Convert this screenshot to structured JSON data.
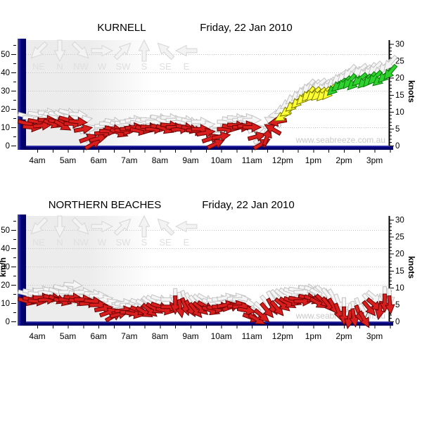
{
  "page": {
    "background": "#ffffff"
  },
  "watermark_text": "www.seabreeze.com.au",
  "axes": {
    "left_label": "km/h",
    "right_label": "knots",
    "left_tick_labels": [
      0,
      10,
      20,
      30,
      40,
      50
    ],
    "right_tick_labels": [
      0,
      5,
      10,
      15,
      20,
      25,
      30
    ],
    "x_tick_labels": [
      "4am",
      "5am",
      "6am",
      "7am",
      "8am",
      "9am",
      "10am",
      "11am",
      "12pm",
      "1pm",
      "2pm",
      "3pm"
    ]
  },
  "direction_legend": [
    "NE",
    "N",
    "NW",
    "W",
    "SW",
    "S",
    "SE",
    "E"
  ],
  "colors": {
    "axis_bar": "#00007e",
    "axis_bar_highlight": "#4949b6",
    "arrow_calm": "#d91e1e",
    "arrow_calm_stroke": "#6b0000",
    "arrow_moderate": "#ffff33",
    "arrow_moderate_stroke": "#7a7a00",
    "arrow_fresh": "#2fd12f",
    "arrow_fresh_stroke": "#0a7a0a",
    "gust_fill": "#f5f5f5",
    "gust_stroke": "#c2c2c2",
    "grid": "#c4c4c4",
    "plot_shade": "#ececec",
    "legend_gray": "#dfdfdf",
    "watermark": "#c9c9c9",
    "text": "#000000"
  },
  "speed_color_thresholds_kmh": {
    "yellow_from": 15,
    "green_from": 30
  },
  "chart_data": [
    {
      "type": "scatter",
      "station": "KURNELL",
      "date": "Friday, 22 Jan 2010",
      "speed_unit": "km/h",
      "alt_unit": "knots",
      "ylim_kmh": [
        0,
        56
      ],
      "xlim_hours": [
        3.6,
        15.8
      ],
      "show_left_axis_label": false,
      "point_format": [
        "hour_24",
        "wind_kmh",
        "gust_kmh",
        "dir_from_deg"
      ],
      "points": [
        [
          3.67,
          12,
          16,
          285
        ],
        [
          3.83,
          10,
          15,
          275
        ],
        [
          4.0,
          13,
          17,
          280
        ],
        [
          4.17,
          11,
          15,
          265
        ],
        [
          4.33,
          14,
          18,
          270
        ],
        [
          4.5,
          12,
          16,
          290
        ],
        [
          4.67,
          13,
          17,
          280
        ],
        [
          4.83,
          11,
          16,
          300
        ],
        [
          5.0,
          14,
          18,
          285
        ],
        [
          5.17,
          12,
          16,
          270
        ],
        [
          5.33,
          13,
          17,
          275
        ],
        [
          5.5,
          9,
          14,
          260
        ],
        [
          5.67,
          4,
          9,
          250
        ],
        [
          5.83,
          1,
          5,
          240
        ],
        [
          6.0,
          4,
          8,
          255
        ],
        [
          6.17,
          7,
          11,
          265
        ],
        [
          6.33,
          8,
          12,
          270
        ],
        [
          6.5,
          9,
          13,
          280
        ],
        [
          6.67,
          7,
          11,
          290
        ],
        [
          6.83,
          8,
          12,
          275
        ],
        [
          7.0,
          9,
          13,
          270
        ],
        [
          7.17,
          10,
          14,
          265
        ],
        [
          7.33,
          8,
          12,
          280
        ],
        [
          7.5,
          9,
          13,
          285
        ],
        [
          7.67,
          10,
          14,
          275
        ],
        [
          7.83,
          9,
          13,
          270
        ],
        [
          8.0,
          10,
          15,
          280
        ],
        [
          8.17,
          9,
          13,
          290
        ],
        [
          8.33,
          11,
          15,
          275
        ],
        [
          8.5,
          10,
          14,
          270
        ],
        [
          8.67,
          9,
          13,
          265
        ],
        [
          8.83,
          10,
          14,
          280
        ],
        [
          9.0,
          9,
          13,
          285
        ],
        [
          9.17,
          8,
          12,
          275
        ],
        [
          9.33,
          9,
          13,
          270
        ],
        [
          9.5,
          7,
          11,
          260
        ],
        [
          9.67,
          4,
          8,
          250
        ],
        [
          9.83,
          1,
          5,
          245
        ],
        [
          10.0,
          5,
          9,
          260
        ],
        [
          10.17,
          9,
          13,
          270
        ],
        [
          10.33,
          10,
          14,
          280
        ],
        [
          10.5,
          11,
          15,
          275
        ],
        [
          10.67,
          10,
          14,
          270
        ],
        [
          10.83,
          11,
          15,
          265
        ],
        [
          11.0,
          10,
          14,
          270
        ],
        [
          11.17,
          5,
          9,
          255
        ],
        [
          11.33,
          1,
          4,
          240
        ],
        [
          11.5,
          5,
          9,
          200
        ],
        [
          11.67,
          9,
          13,
          120
        ],
        [
          11.83,
          13,
          17,
          80
        ],
        [
          12.0,
          16,
          20,
          60
        ],
        [
          12.17,
          19,
          23,
          55
        ],
        [
          12.33,
          22,
          26,
          50
        ],
        [
          12.5,
          24,
          28,
          45
        ],
        [
          12.67,
          26,
          30,
          45
        ],
        [
          12.83,
          28,
          32,
          40
        ],
        [
          13.0,
          28,
          32,
          45
        ],
        [
          13.17,
          28,
          33,
          50
        ],
        [
          13.33,
          28,
          32,
          45
        ],
        [
          13.5,
          29,
          33,
          40
        ],
        [
          13.67,
          31,
          35,
          45
        ],
        [
          13.83,
          33,
          37,
          50
        ],
        [
          14.0,
          34,
          38,
          45
        ],
        [
          14.17,
          35,
          40,
          40
        ],
        [
          14.33,
          34,
          39,
          45
        ],
        [
          14.5,
          36,
          41,
          50
        ],
        [
          14.67,
          35,
          40,
          45
        ],
        [
          14.83,
          36,
          41,
          40
        ],
        [
          15.0,
          37,
          42,
          45
        ],
        [
          15.17,
          36,
          41,
          50
        ],
        [
          15.33,
          38,
          43,
          45
        ],
        [
          15.5,
          40,
          45,
          40
        ]
      ]
    },
    {
      "type": "scatter",
      "station": "NORTHERN BEACHES",
      "date": "Friday, 22 Jan 2010",
      "speed_unit": "km/h",
      "alt_unit": "knots",
      "ylim_kmh": [
        0,
        56
      ],
      "xlim_hours": [
        3.6,
        15.8
      ],
      "show_left_axis_label": true,
      "point_format": [
        "hour_24",
        "wind_kmh",
        "gust_kmh",
        "dir_from_deg"
      ],
      "points": [
        [
          3.67,
          11,
          15,
          285
        ],
        [
          3.83,
          12,
          16,
          280
        ],
        [
          4.0,
          11,
          15,
          275
        ],
        [
          4.17,
          13,
          17,
          270
        ],
        [
          4.33,
          12,
          16,
          265
        ],
        [
          4.5,
          13,
          17,
          280
        ],
        [
          4.67,
          12,
          16,
          290
        ],
        [
          4.83,
          11,
          18,
          285
        ],
        [
          5.0,
          12,
          16,
          270
        ],
        [
          5.17,
          13,
          20,
          275
        ],
        [
          5.33,
          11,
          15,
          280
        ],
        [
          5.5,
          12,
          16,
          270
        ],
        [
          5.67,
          10,
          14,
          265
        ],
        [
          5.83,
          11,
          15,
          275
        ],
        [
          6.0,
          9,
          14,
          270
        ],
        [
          6.17,
          7,
          12,
          260
        ],
        [
          6.33,
          5,
          10,
          250
        ],
        [
          6.5,
          3,
          8,
          240
        ],
        [
          6.67,
          4,
          9,
          255
        ],
        [
          6.83,
          6,
          10,
          265
        ],
        [
          7.0,
          5,
          9,
          270
        ],
        [
          7.17,
          4,
          8,
          280
        ],
        [
          7.33,
          6,
          10,
          290
        ],
        [
          7.5,
          5,
          9,
          300
        ],
        [
          7.67,
          6,
          10,
          310
        ],
        [
          7.83,
          7,
          11,
          300
        ],
        [
          8.0,
          8,
          12,
          290
        ],
        [
          8.17,
          6,
          10,
          280
        ],
        [
          8.33,
          8,
          12,
          270
        ],
        [
          8.5,
          9,
          13,
          0
        ],
        [
          8.67,
          7,
          11,
          350
        ],
        [
          8.83,
          8,
          12,
          340
        ],
        [
          9.0,
          7,
          11,
          330
        ],
        [
          9.17,
          6,
          10,
          320
        ],
        [
          9.33,
          7,
          11,
          310
        ],
        [
          9.5,
          8,
          12,
          300
        ],
        [
          9.67,
          6,
          10,
          290
        ],
        [
          9.83,
          7,
          11,
          280
        ],
        [
          10.0,
          8,
          12,
          270
        ],
        [
          10.17,
          9,
          13,
          260
        ],
        [
          10.33,
          8,
          12,
          250
        ],
        [
          10.5,
          9,
          13,
          260
        ],
        [
          10.67,
          8,
          12,
          270
        ],
        [
          10.83,
          6,
          10,
          280
        ],
        [
          11.0,
          2,
          6,
          290
        ],
        [
          11.17,
          1,
          5,
          300
        ],
        [
          11.33,
          3,
          7,
          310
        ],
        [
          11.5,
          6,
          10,
          320
        ],
        [
          11.67,
          8,
          12,
          330
        ],
        [
          11.83,
          7,
          13,
          320
        ],
        [
          12.0,
          9,
          14,
          310
        ],
        [
          12.17,
          10,
          15,
          300
        ],
        [
          12.33,
          11,
          16,
          290
        ],
        [
          12.5,
          12,
          17,
          280
        ],
        [
          12.67,
          11,
          16,
          270
        ],
        [
          12.83,
          13,
          18,
          280
        ],
        [
          13.0,
          12,
          17,
          290
        ],
        [
          13.17,
          10,
          15,
          300
        ],
        [
          13.33,
          11,
          16,
          310
        ],
        [
          13.5,
          9,
          14,
          320
        ],
        [
          13.67,
          8,
          13,
          330
        ],
        [
          13.83,
          5,
          10,
          340
        ],
        [
          14.0,
          3,
          8,
          0
        ],
        [
          14.17,
          1,
          5,
          10
        ],
        [
          14.33,
          2,
          6,
          350
        ],
        [
          14.5,
          4,
          8,
          340
        ],
        [
          14.67,
          1,
          5,
          330
        ],
        [
          14.83,
          7,
          11,
          320
        ],
        [
          15.0,
          9,
          13,
          310
        ],
        [
          15.17,
          6,
          10,
          10
        ],
        [
          15.33,
          10,
          14,
          0
        ],
        [
          15.5,
          9,
          13,
          355
        ]
      ]
    }
  ]
}
